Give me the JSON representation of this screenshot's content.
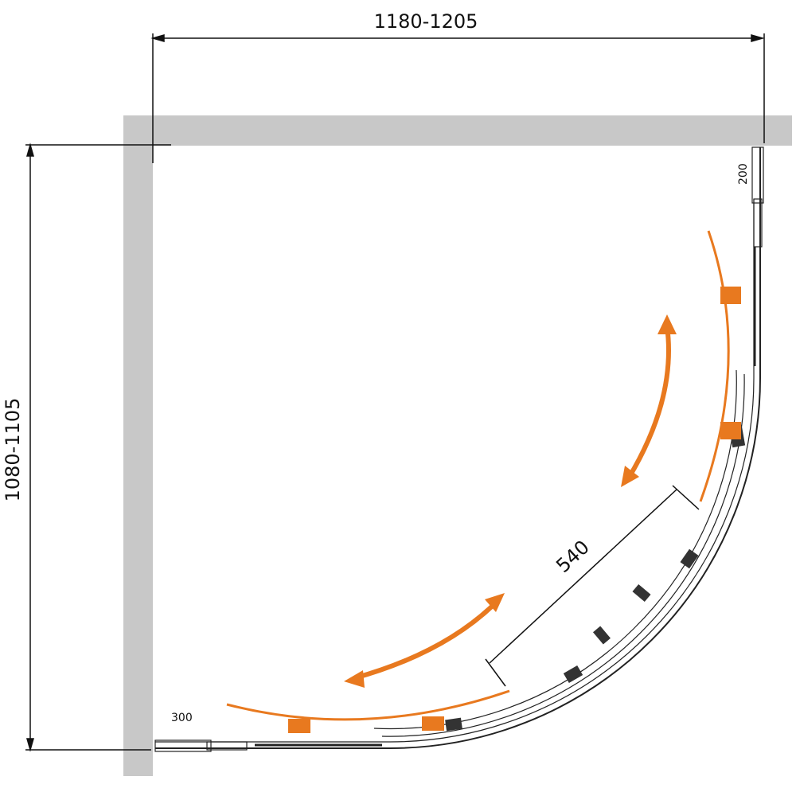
{
  "dimensions": {
    "width": "1180-1205",
    "depth": "1080-1105",
    "door_opening": "540",
    "top_panel": "200",
    "bottom_panel": "300"
  }
}
